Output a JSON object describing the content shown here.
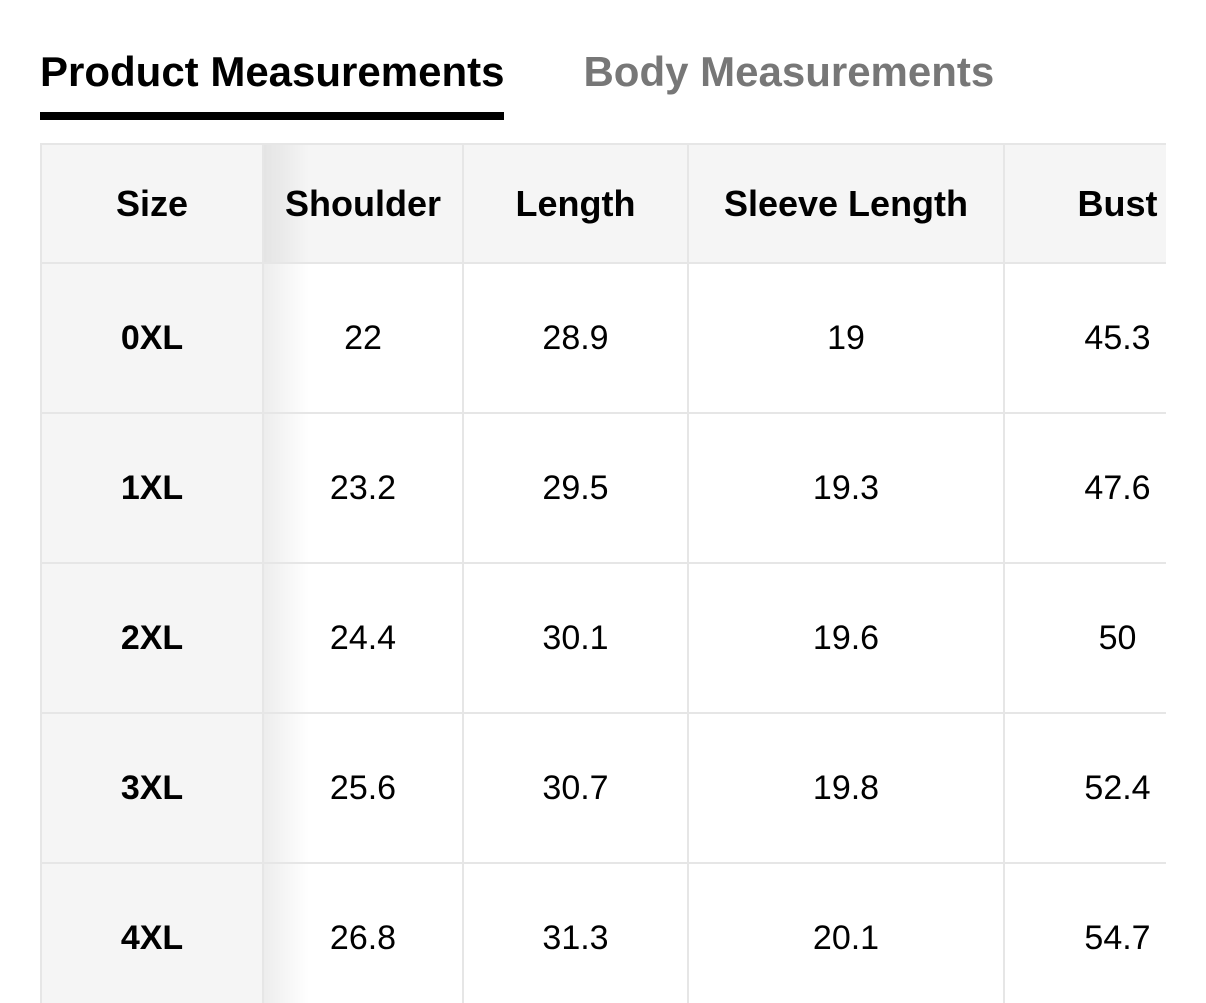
{
  "tabs": [
    {
      "label": "Product Measurements",
      "active": true
    },
    {
      "label": "Body Measurements",
      "active": false
    }
  ],
  "table": {
    "headers": [
      "Size",
      "Shoulder",
      "Length",
      "Sleeve Length",
      "Bust"
    ],
    "rows": [
      [
        "0XL",
        "22",
        "28.9",
        "19",
        "45.3"
      ],
      [
        "1XL",
        "23.2",
        "29.5",
        "19.3",
        "47.6"
      ],
      [
        "2XL",
        "24.4",
        "30.1",
        "19.6",
        "50"
      ],
      [
        "3XL",
        "25.6",
        "30.7",
        "19.8",
        "52.4"
      ],
      [
        "4XL",
        "26.8",
        "31.3",
        "20.1",
        "54.7"
      ]
    ]
  }
}
